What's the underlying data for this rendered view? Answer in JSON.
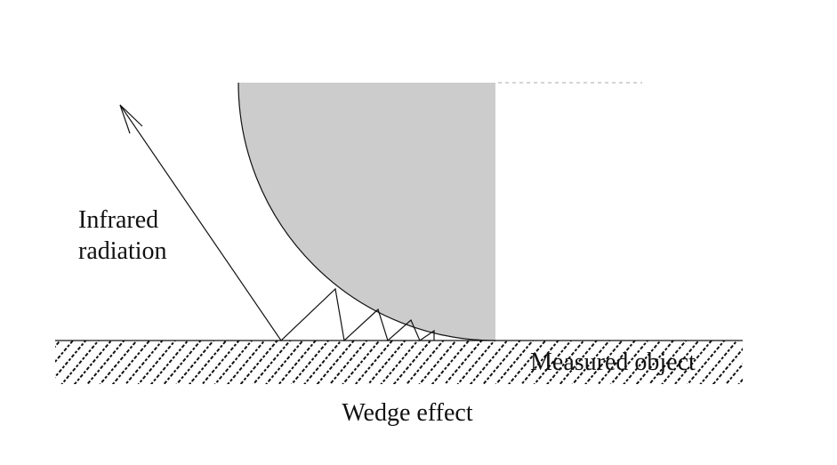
{
  "labels": {
    "radiation_line1": "Infrared",
    "radiation_line2": "radiation",
    "object": "Measured object",
    "caption": "Wedge effect"
  },
  "colors": {
    "probe_fill": "#cccccc",
    "line": "#111111",
    "hatch": "#111111"
  }
}
